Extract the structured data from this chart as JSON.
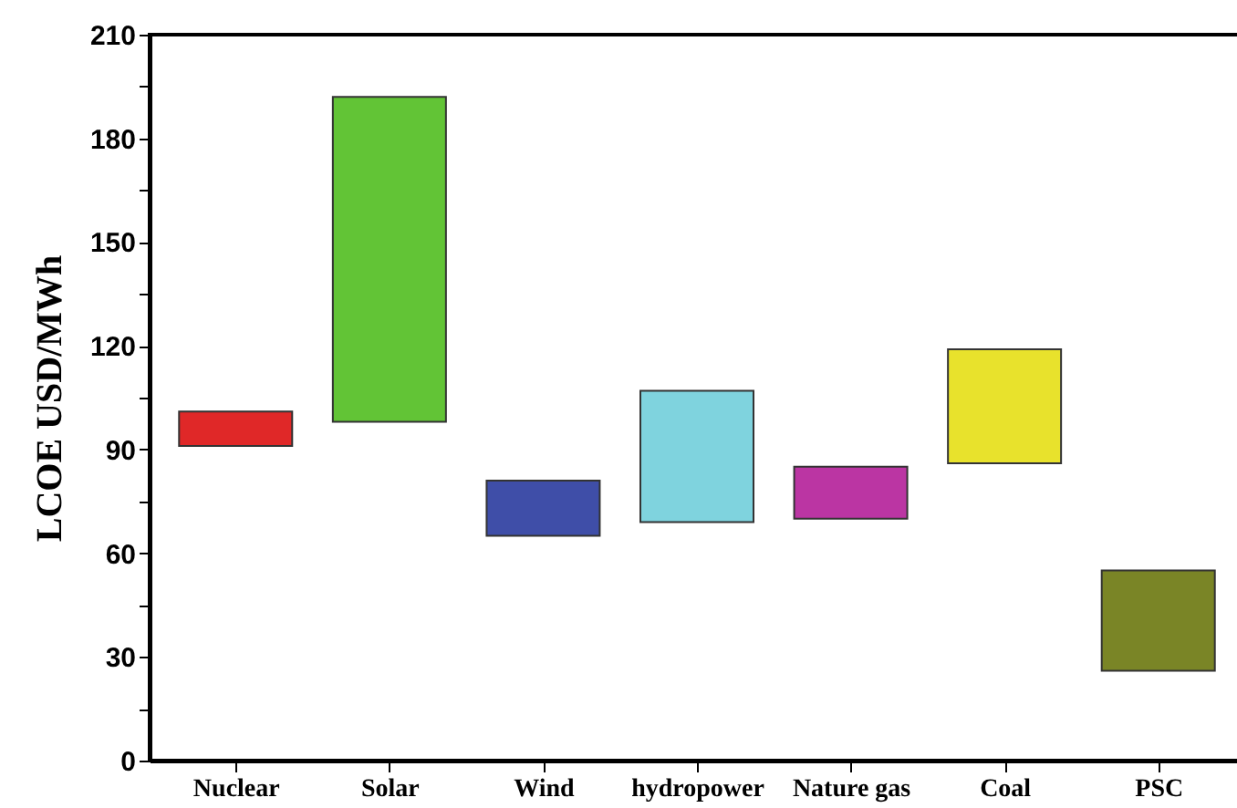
{
  "chart_data": {
    "type": "bar",
    "ylabel": "LCOE USD/MWh",
    "categories": [
      "Nuclear",
      "Solar",
      "Wind",
      "hydropower",
      "Nature gas",
      "Coal",
      "PSC"
    ],
    "base": [
      91,
      98,
      65,
      69,
      70,
      86,
      26
    ],
    "values": [
      10,
      94,
      16,
      38,
      15,
      33,
      29
    ],
    "colors": [
      "#e02828",
      "#62c436",
      "#3f4ea8",
      "#7fd3de",
      "#bb35a3",
      "#e8e22c",
      "#7a8526"
    ],
    "ylim": [
      0,
      210
    ],
    "yticks": [
      0,
      {
        "value": 15,
        "label": null
      },
      30,
      {
        "value": 45,
        "label": null
      },
      60,
      {
        "value": 75,
        "label": null
      },
      90,
      {
        "value": 105,
        "label": null
      },
      120,
      {
        "value": 135,
        "label": null
      },
      150,
      {
        "value": 165,
        "label": null
      },
      180,
      {
        "value": 195,
        "label": null
      },
      210
    ],
    "grid": false
  }
}
